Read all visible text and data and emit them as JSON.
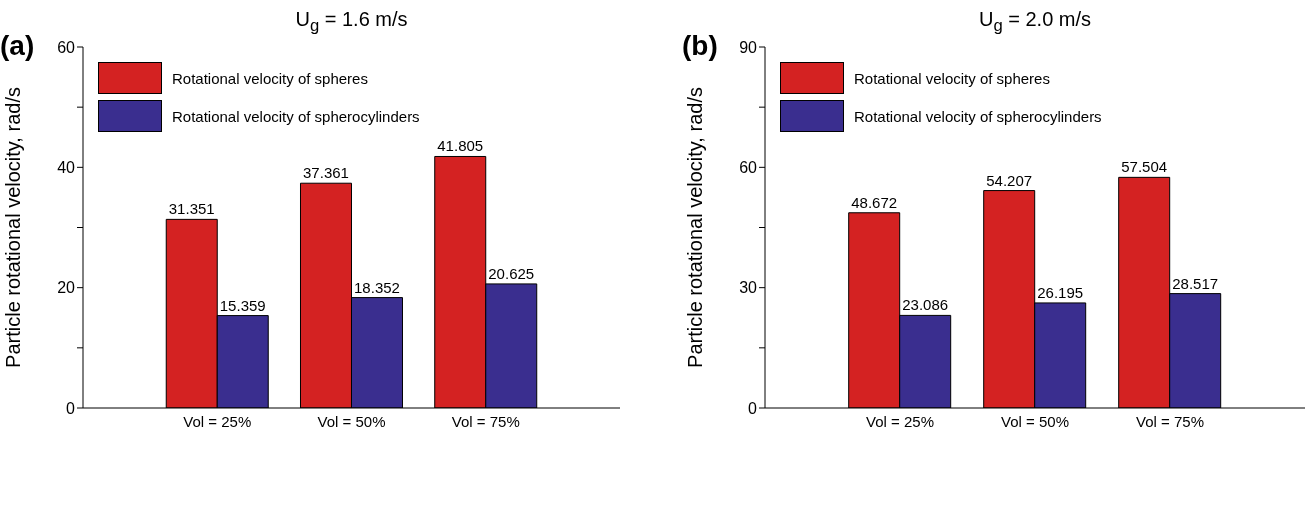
{
  "chart_data": [
    {
      "type": "bar",
      "title": "U$_{g}$ = 1.6 m/s",
      "ylabel": "Particle rotational velocity, rad/s",
      "annotations": [
        "(a)"
      ],
      "categories": [
        "Vol = 25%",
        "Vol = 50%",
        "Vol = 75%"
      ],
      "series": [
        {
          "name": "Rotational velocity of spheres",
          "color": "#d42222",
          "values": [
            31.351,
            37.361,
            41.805
          ]
        },
        {
          "name": "Rotational velocity of spherocylinders",
          "color": "#3a2e8f",
          "values": [
            15.359,
            18.352,
            20.625
          ]
        }
      ],
      "ylim": [
        0,
        60
      ],
      "yticks": [
        0,
        {
          "value": 10,
          "label": null
        },
        20,
        {
          "value": 30,
          "label": null
        },
        40,
        {
          "value": 50,
          "label": null
        },
        60
      ],
      "grid": false,
      "legend": "top left",
      "data_labels": true
    },
    {
      "type": "bar",
      "title": "U$_{g}$ = 2.0 m/s",
      "ylabel": "Particle rotational velocity, rad/s",
      "annotations": [
        "(b)"
      ],
      "categories": [
        "Vol = 25%",
        "Vol = 50%",
        "Vol = 75%"
      ],
      "series": [
        {
          "name": "Rotational velocity of spheres",
          "color": "#d42222",
          "values": [
            48.672,
            54.207,
            57.504
          ]
        },
        {
          "name": "Rotational velocity of spherocylinders",
          "color": "#3a2e8f",
          "values": [
            23.086,
            26.195,
            28.517
          ]
        }
      ],
      "ylim": [
        0,
        90
      ],
      "yticks": [
        0,
        {
          "value": 15,
          "label": null
        },
        30,
        {
          "value": 45,
          "label": null
        },
        60,
        {
          "value": 75,
          "label": null
        },
        90
      ],
      "grid": false,
      "legend": "top left",
      "data_labels": true
    }
  ]
}
